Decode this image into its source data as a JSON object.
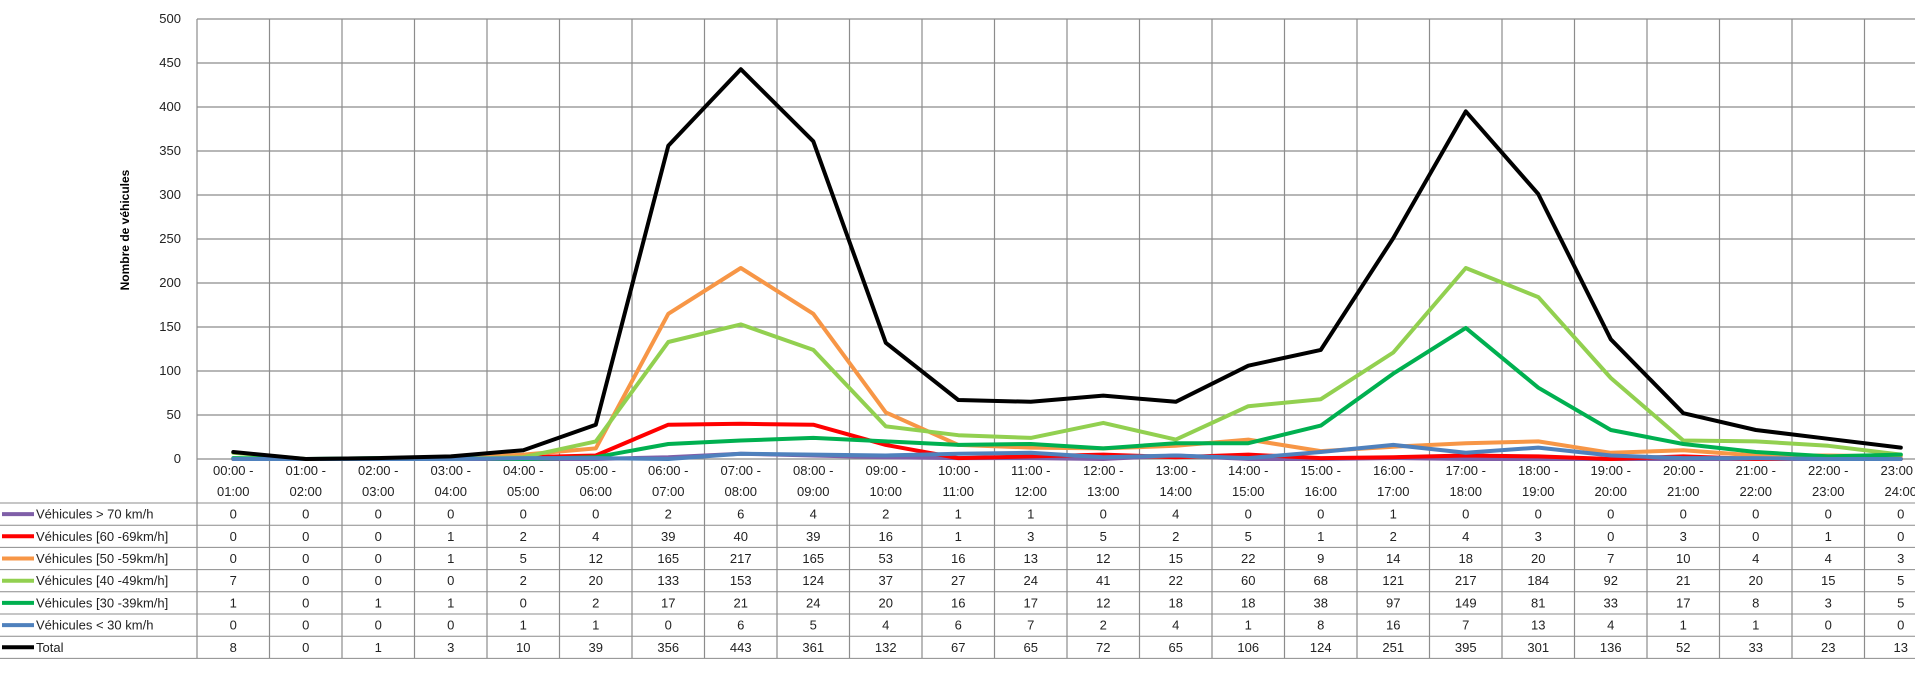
{
  "chart_data": {
    "type": "line",
    "title": "",
    "xlabel": "",
    "ylabel": "Nombre de véhicules",
    "ylim": [
      0,
      500
    ],
    "yticks": [
      0,
      50,
      100,
      150,
      200,
      250,
      300,
      350,
      400,
      450,
      500
    ],
    "grid": true,
    "legend": "data-table",
    "categories": [
      [
        "00:00 -",
        "01:00"
      ],
      [
        "01:00 -",
        "02:00"
      ],
      [
        "02:00 -",
        "03:00"
      ],
      [
        "03:00 -",
        "04:00"
      ],
      [
        "04:00 -",
        "05:00"
      ],
      [
        "05:00 -",
        "06:00"
      ],
      [
        "06:00 -",
        "07:00"
      ],
      [
        "07:00 -",
        "08:00"
      ],
      [
        "08:00 -",
        "09:00"
      ],
      [
        "09:00 -",
        "10:00"
      ],
      [
        "10:00 -",
        "11:00"
      ],
      [
        "11:00 -",
        "12:00"
      ],
      [
        "12:00 -",
        "13:00"
      ],
      [
        "13:00 -",
        "14:00"
      ],
      [
        "14:00 -",
        "15:00"
      ],
      [
        "15:00 -",
        "16:00"
      ],
      [
        "16:00 -",
        "17:00"
      ],
      [
        "17:00 -",
        "18:00"
      ],
      [
        "18:00 -",
        "19:00"
      ],
      [
        "19:00 -",
        "20:00"
      ],
      [
        "20:00 -",
        "21:00"
      ],
      [
        "21:00 -",
        "22:00"
      ],
      [
        "22:00 -",
        "23:00"
      ],
      [
        "23:00 -",
        "24:00"
      ]
    ],
    "series": [
      {
        "name": "Véhicules > 70 km/h",
        "color": "#7f5fa8",
        "values": [
          0,
          0,
          0,
          0,
          0,
          0,
          2,
          6,
          4,
          2,
          1,
          1,
          0,
          4,
          0,
          0,
          1,
          0,
          0,
          0,
          0,
          0,
          0,
          0
        ]
      },
      {
        "name": "Véhicules [60 -69km/h]",
        "color": "#ff0000",
        "values": [
          0,
          0,
          0,
          1,
          2,
          4,
          39,
          40,
          39,
          16,
          1,
          3,
          5,
          2,
          5,
          1,
          2,
          4,
          3,
          0,
          3,
          0,
          1,
          0
        ]
      },
      {
        "name": "Véhicules [50 -59km/h]",
        "color": "#f79646",
        "values": [
          0,
          0,
          0,
          1,
          5,
          12,
          165,
          217,
          165,
          53,
          16,
          13,
          12,
          15,
          22,
          9,
          14,
          18,
          20,
          7,
          10,
          4,
          4,
          3
        ]
      },
      {
        "name": "Véhicules [40 -49km/h]",
        "color": "#92d050",
        "values": [
          7,
          0,
          0,
          0,
          2,
          20,
          133,
          153,
          124,
          37,
          27,
          24,
          41,
          22,
          60,
          68,
          121,
          217,
          184,
          92,
          21,
          20,
          15,
          5
        ]
      },
      {
        "name": "Véhicules [30 -39km/h]",
        "color": "#00b050",
        "values": [
          1,
          0,
          1,
          1,
          0,
          2,
          17,
          21,
          24,
          20,
          16,
          17,
          12,
          18,
          18,
          38,
          97,
          149,
          81,
          33,
          17,
          8,
          3,
          5
        ]
      },
      {
        "name": "Véhicules < 30 km/h",
        "color": "#4f81bd",
        "values": [
          0,
          0,
          0,
          0,
          1,
          1,
          0,
          6,
          5,
          4,
          6,
          7,
          2,
          4,
          1,
          8,
          16,
          7,
          13,
          4,
          1,
          1,
          0,
          0
        ]
      },
      {
        "name": "Total",
        "color": "#000000",
        "values": [
          8,
          0,
          1,
          3,
          10,
          39,
          356,
          443,
          361,
          132,
          67,
          65,
          72,
          65,
          106,
          124,
          251,
          395,
          301,
          136,
          52,
          33,
          23,
          13
        ]
      }
    ]
  }
}
